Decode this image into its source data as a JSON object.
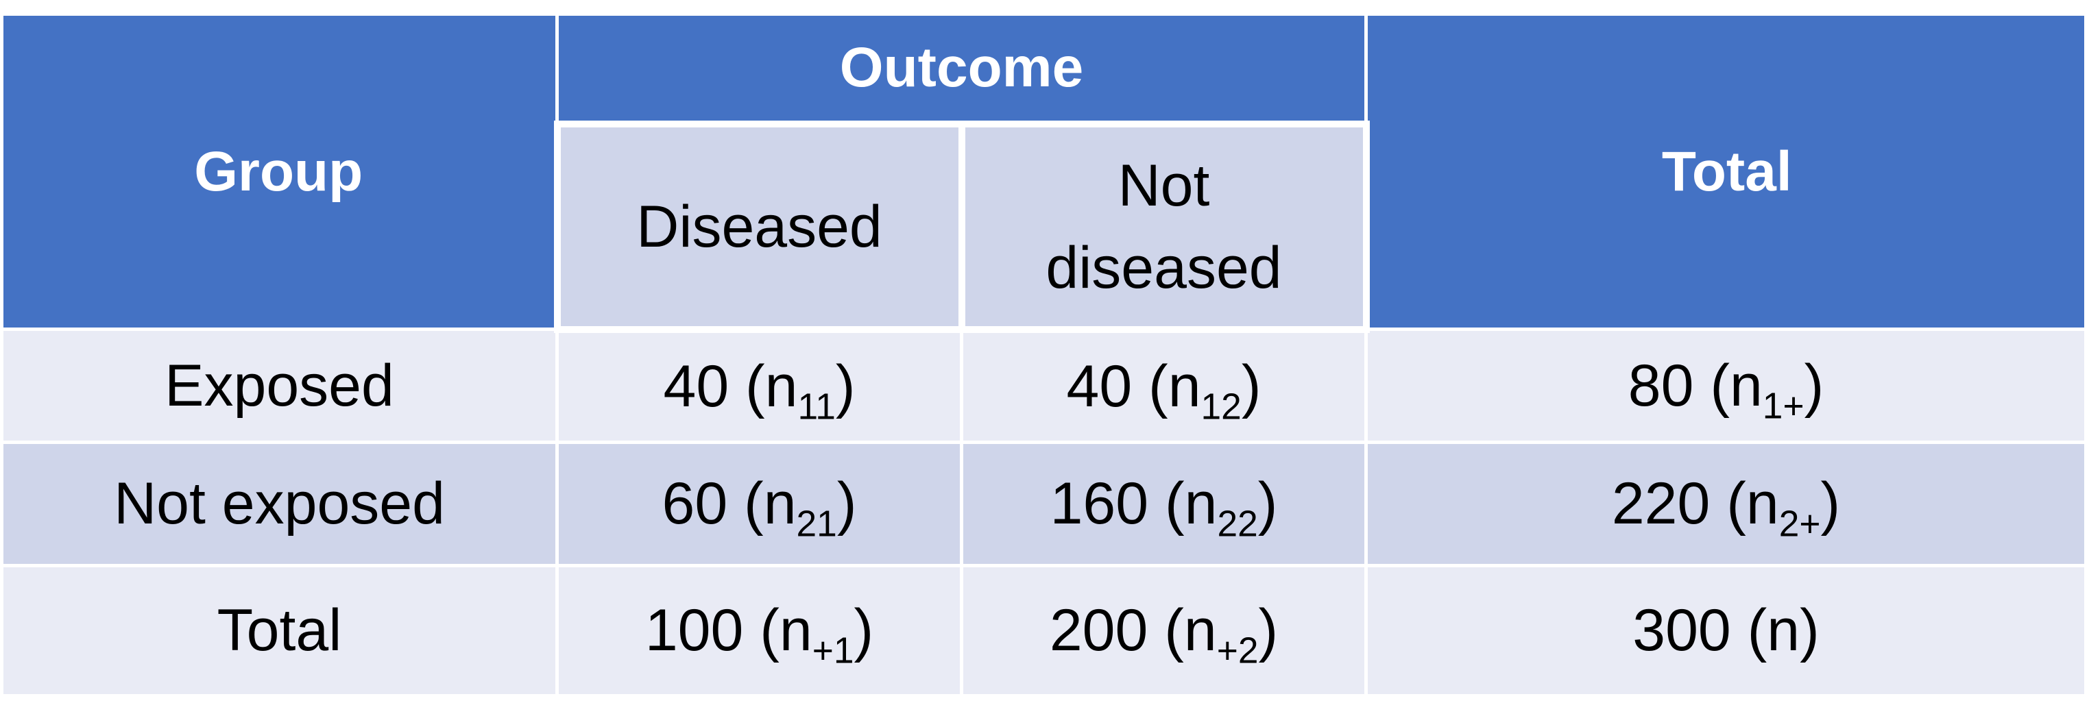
{
  "header": {
    "group": "Group",
    "outcome": "Outcome",
    "total": "Total",
    "diseased": "Diseased",
    "not_diseased_line1": "Not",
    "not_diseased_line2": "diseased"
  },
  "rows": [
    {
      "label": "Exposed",
      "c1_value": "40 (n",
      "c1_sub": "11",
      "c1_close": ")",
      "c2_value": "40 (n",
      "c2_sub": "12",
      "c2_close": ")",
      "c3_value": "80 (n",
      "c3_sub": "1+",
      "c3_close": ")"
    },
    {
      "label": "Not exposed",
      "c1_value": "60 (n",
      "c1_sub": "21",
      "c1_close": ")",
      "c2_value": "160 (n",
      "c2_sub": "22",
      "c2_close": ")",
      "c3_value": "220 (n",
      "c3_sub": "2+",
      "c3_close": ")"
    },
    {
      "label": "Total",
      "c1_value": "100 (n",
      "c1_sub": "+1",
      "c1_close": ")",
      "c2_value": "200 (n",
      "c2_sub": "+2",
      "c2_close": ")",
      "c3_value": "300 (n)"
    }
  ]
}
